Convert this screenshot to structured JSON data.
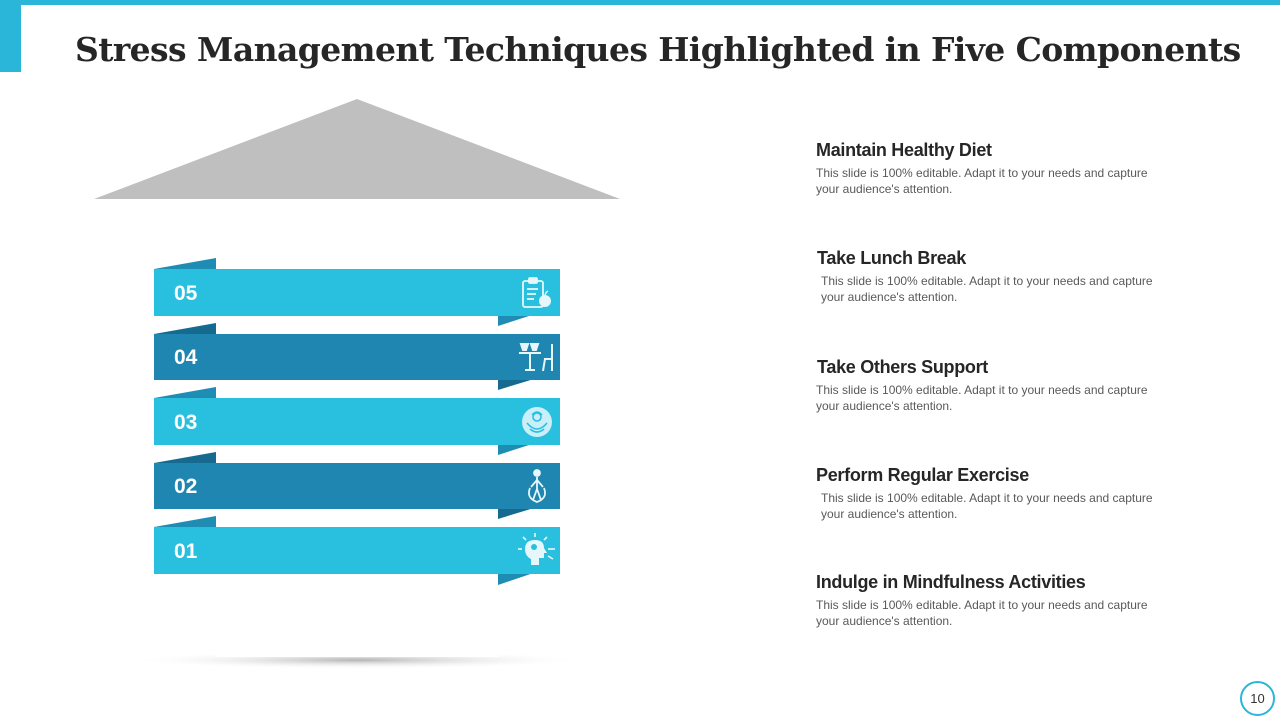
{
  "slide": {
    "title": "Stress Management Techniques Highlighted in Five Components",
    "page_number": "10"
  },
  "colors": {
    "accent": "#29b6d8",
    "ribbon_light": "#29c0e0",
    "ribbon_dark": "#1e86b0",
    "roof": "#bfbfbf"
  },
  "ribbons": [
    {
      "number": "05",
      "icon": "clipboard-apple-icon"
    },
    {
      "number": "04",
      "icon": "table-chairs-icon"
    },
    {
      "number": "03",
      "icon": "lotus-hands-icon"
    },
    {
      "number": "02",
      "icon": "jump-rope-icon"
    },
    {
      "number": "01",
      "icon": "head-mindfulness-icon"
    }
  ],
  "items": [
    {
      "title": "Maintain Healthy Diet",
      "desc": "This slide is 100% editable. Adapt it to your needs and capture your audience's attention."
    },
    {
      "title": "Take Lunch Break",
      "desc": "This slide is 100% editable. Adapt it to your needs and capture your audience's attention."
    },
    {
      "title": "Take Others Support",
      "desc": "This slide is 100% editable. Adapt it to your needs and capture your audience's attention."
    },
    {
      "title": "Perform Regular Exercise",
      "desc": "This slide is 100% editable. Adapt it to your needs and capture your audience's attention."
    },
    {
      "title": "Indulge in Mindfulness Activities",
      "desc": "This slide is 100% editable. Adapt it to your needs and capture your audience's attention."
    }
  ]
}
